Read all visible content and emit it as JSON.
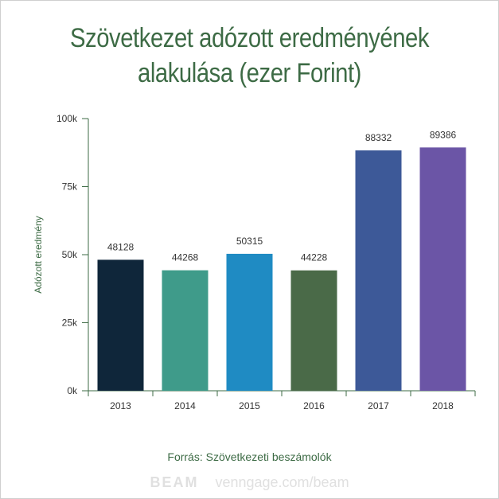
{
  "title_line1": "Szövetkezet adózott eredményének",
  "title_line2": "alakulása (ezer Forint)",
  "source": "Forrás: Szövetkezeti beszámolók",
  "watermark": {
    "logo": "BEAM",
    "url": "venngage.com/beam"
  },
  "colors": {
    "title": "#3d6b45",
    "axis": "#3d6b45"
  },
  "chart_data": {
    "type": "bar",
    "title": "Szövetkezet adózott eredményének alakulása (ezer Forint)",
    "xlabel": "",
    "ylabel": "Adózott eredmény",
    "categories": [
      "2013",
      "2014",
      "2015",
      "2016",
      "2017",
      "2018"
    ],
    "values": [
      48128,
      44268,
      50315,
      44228,
      88332,
      89386
    ],
    "bar_colors": [
      "#0f263a",
      "#3f9b8a",
      "#1f8bc3",
      "#4a6a48",
      "#3d5998",
      "#6b55a6"
    ],
    "ylim": [
      0,
      100000
    ],
    "yticks": [
      0,
      25000,
      50000,
      75000,
      100000
    ],
    "ytick_labels": [
      "0k",
      "25k",
      "50k",
      "75k",
      "100k"
    ],
    "grid": false,
    "legend": "none"
  }
}
